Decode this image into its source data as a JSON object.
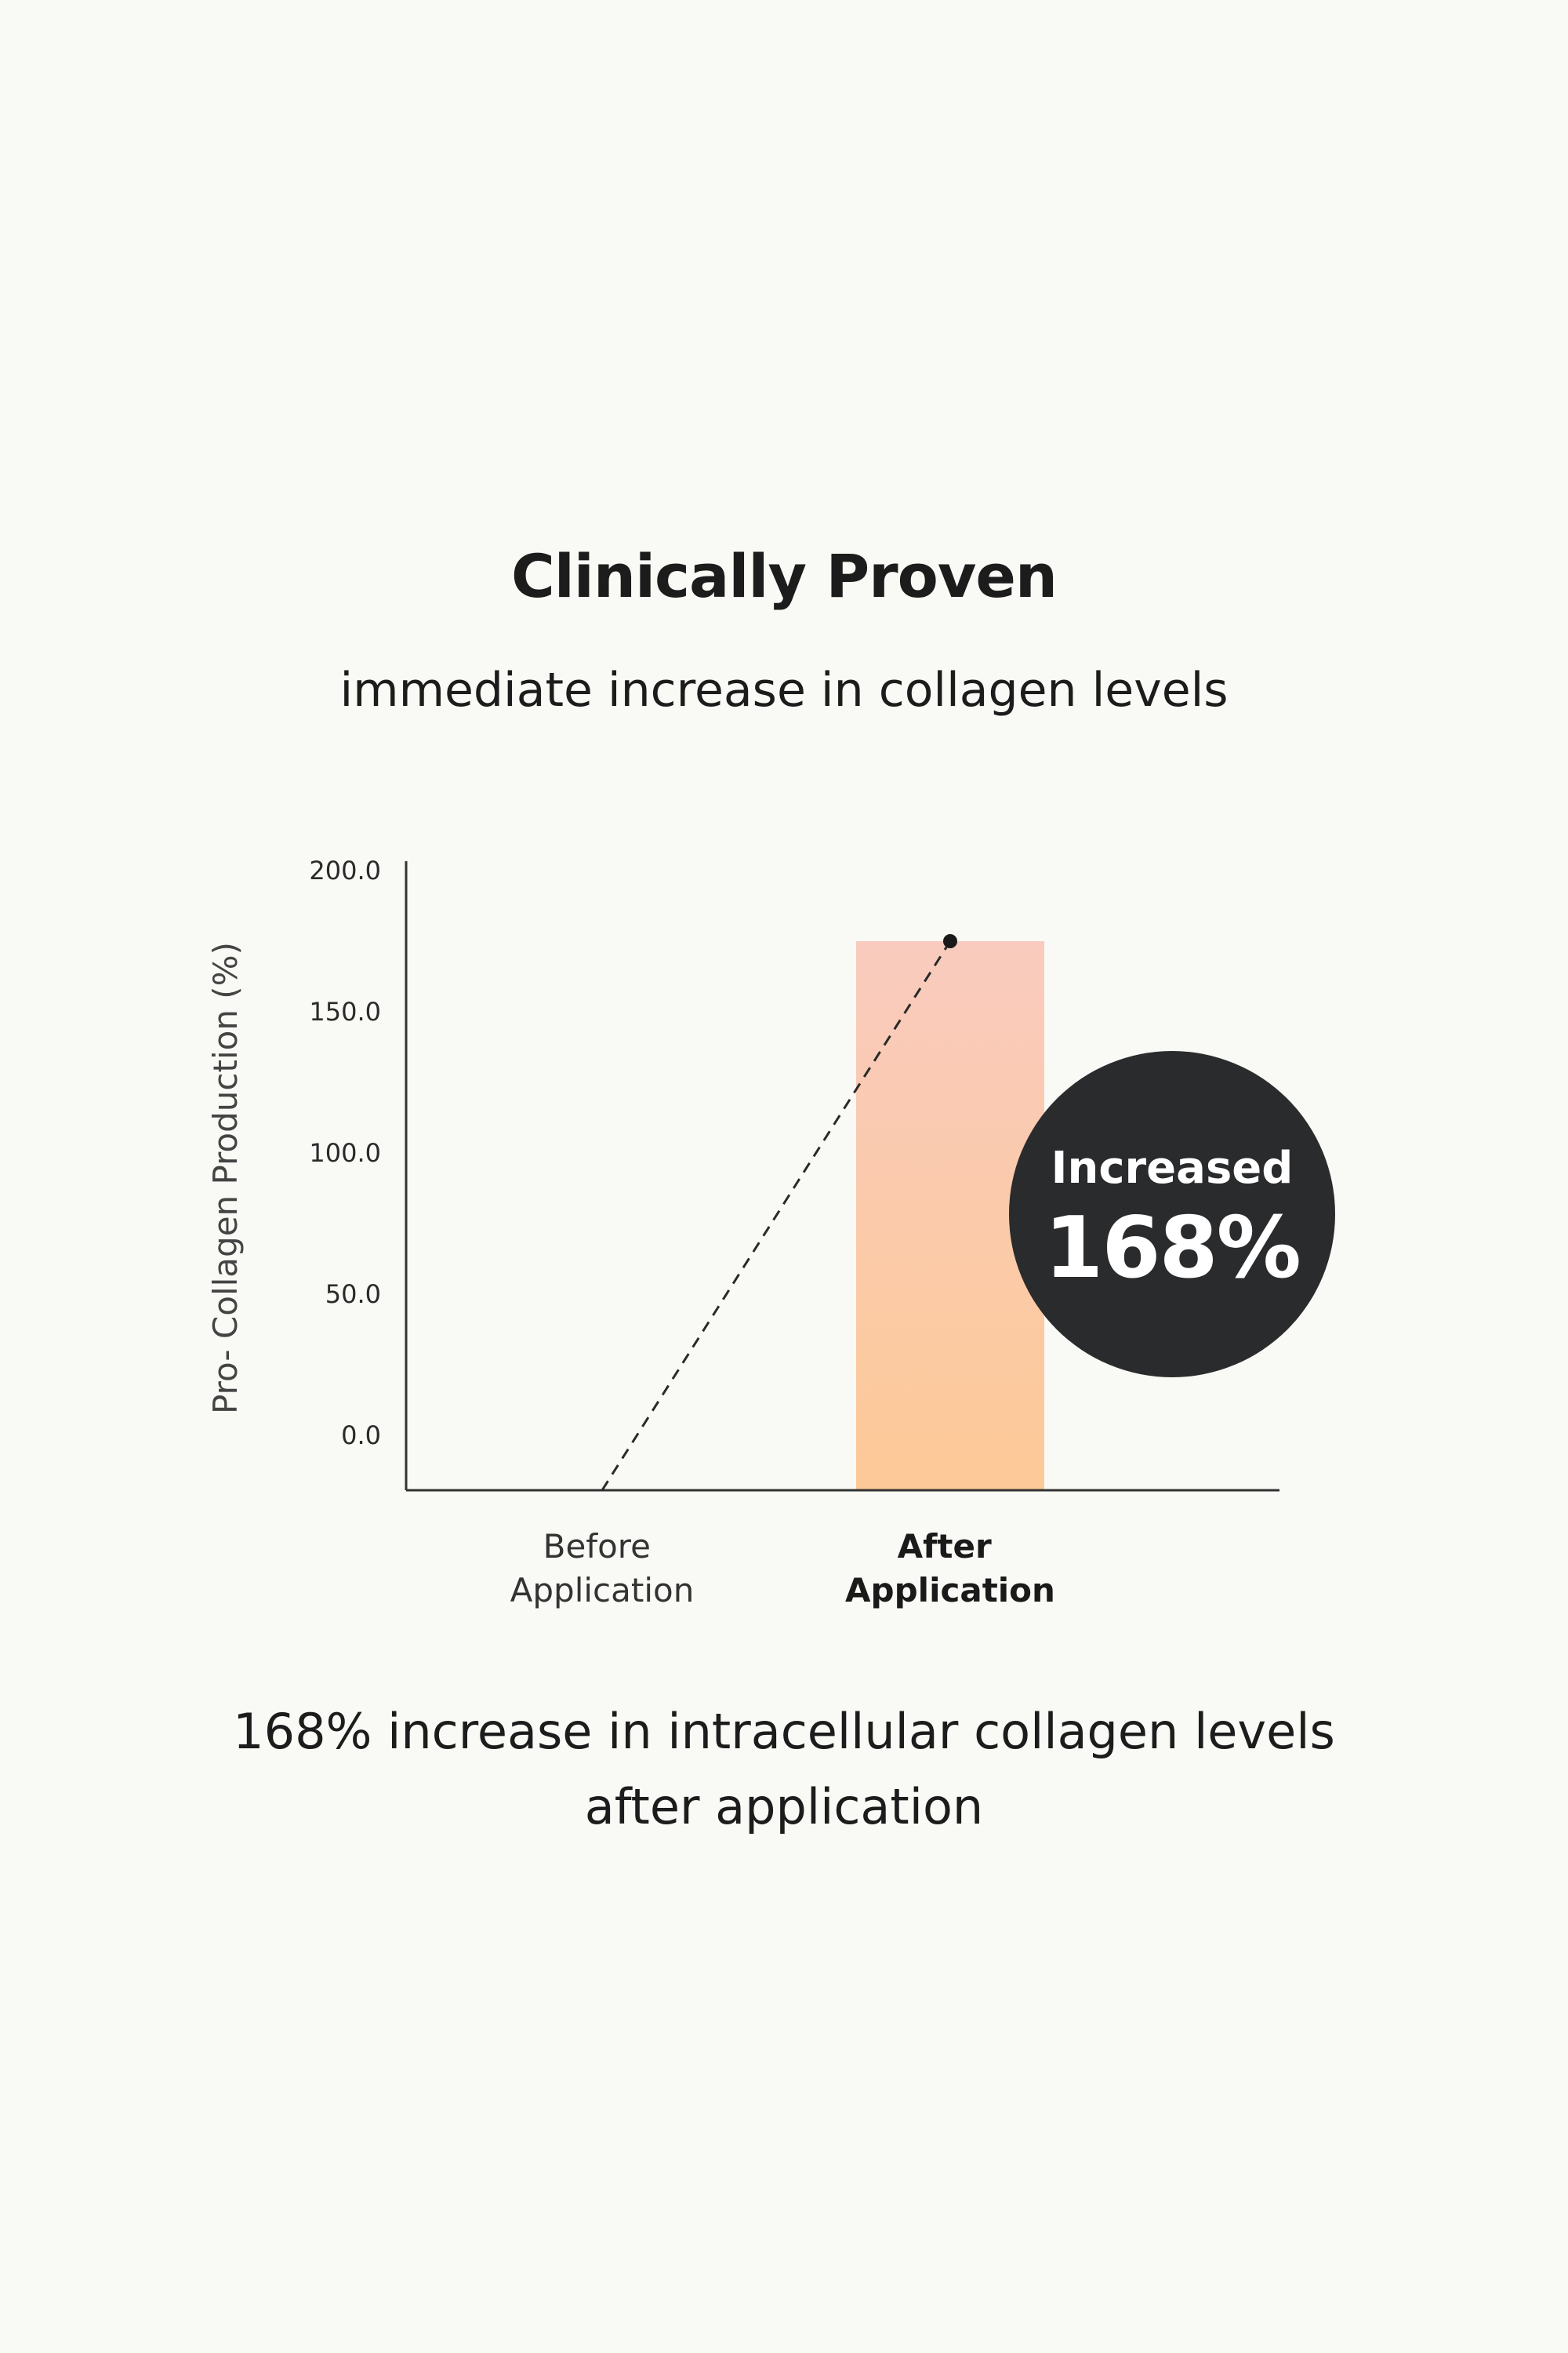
{
  "header": {
    "title": "Clinically Proven",
    "subtitle": "immediate increase in collagen levels"
  },
  "chart_data": {
    "type": "bar",
    "categories": [
      "Before\nApplication",
      "After\nApplication"
    ],
    "category_lines": [
      [
        "Before",
        "Application"
      ],
      [
        "After",
        "Application"
      ]
    ],
    "values": [
      null,
      175
    ],
    "ylabel": "Pro- Collagen Production (%)",
    "ylim": [
      0,
      200
    ],
    "yticks": [
      "0.0",
      "50.0",
      "100.0",
      "150.0",
      "200.0"
    ],
    "ytick_values": [
      0,
      50,
      100,
      150,
      200
    ],
    "trend_line": {
      "style": "dashed",
      "from_category": 0,
      "from_value": -20,
      "to_category": 1,
      "to_value": 175
    },
    "badge": {
      "top": "Increased",
      "big": "168%"
    },
    "grid": false,
    "colors": {
      "bar_top": "#f9cbbe",
      "bar_bottom": "#fdc997",
      "badge": "#2a2b2d",
      "axis": "#333333"
    }
  },
  "caption": {
    "line1": "168% increase in intracellular collagen levels",
    "line2": "after application"
  }
}
